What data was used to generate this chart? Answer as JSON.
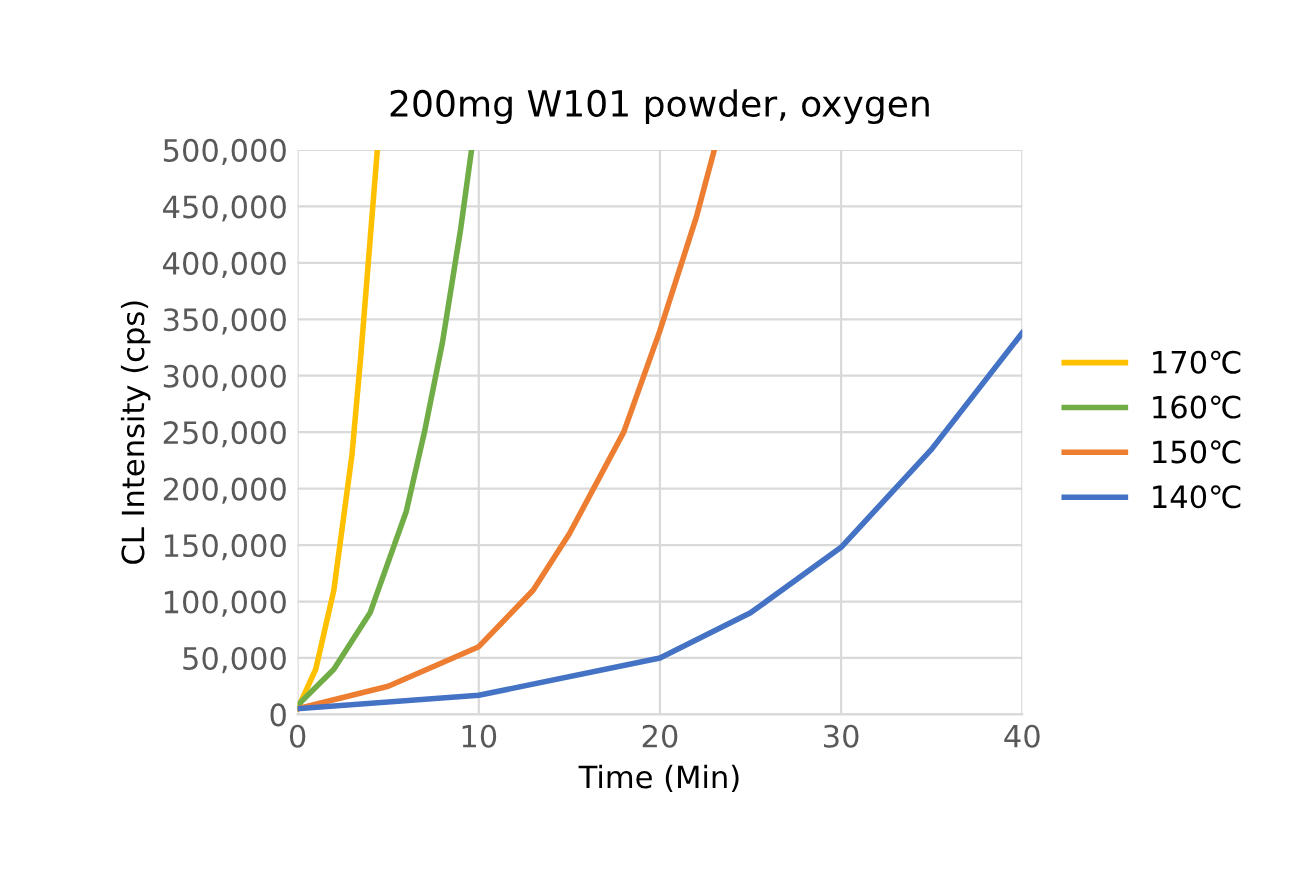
{
  "chart_data": {
    "type": "line",
    "title": "200mg W101 powder, oxygen",
    "xlabel": "Time (Min)",
    "ylabel": "CL Intensity (cps)",
    "xlim": [
      0,
      40
    ],
    "xticks": [
      0,
      10,
      20,
      30,
      40
    ],
    "ylim": [
      0,
      500000
    ],
    "yticks": [
      {
        "value": 0,
        "label": "0"
      },
      {
        "value": 50000,
        "label": "50,000"
      },
      {
        "value": 100000,
        "label": "100,000"
      },
      {
        "value": 150000,
        "label": "150,000"
      },
      {
        "value": 200000,
        "label": "200,000"
      },
      {
        "value": 250000,
        "label": "250,000"
      },
      {
        "value": 300000,
        "label": "300,000"
      },
      {
        "value": 350000,
        "label": "350,000"
      },
      {
        "value": 400000,
        "label": "400,000"
      },
      {
        "value": 450000,
        "label": "450,000"
      },
      {
        "value": 500000,
        "label": "500,000"
      }
    ],
    "grid": true,
    "legend": "right",
    "marker": "none",
    "line_style": "solid",
    "series": [
      {
        "name": "170℃",
        "color": "#ffc000",
        "x": [
          0,
          1,
          2,
          3,
          3.5,
          4,
          4.4
        ],
        "values": [
          5000,
          40000,
          110000,
          230000,
          320000,
          420000,
          500000
        ]
      },
      {
        "name": "160℃",
        "color": "#70ad47",
        "x": [
          0,
          2,
          4,
          6,
          7,
          8,
          9,
          9.6
        ],
        "values": [
          8000,
          40000,
          90000,
          180000,
          250000,
          330000,
          430000,
          500000
        ]
      },
      {
        "name": "150℃",
        "color": "#ed7d31",
        "x": [
          0,
          5,
          10,
          13,
          15,
          18,
          20,
          22,
          23
        ],
        "values": [
          5000,
          25000,
          60000,
          110000,
          160000,
          250000,
          340000,
          440000,
          500000
        ]
      },
      {
        "name": "140℃",
        "color": "#4472c4",
        "x": [
          0,
          10,
          20,
          25,
          30,
          35,
          40
        ],
        "values": [
          5000,
          17000,
          50000,
          90000,
          148000,
          235000,
          338000
        ]
      }
    ]
  }
}
